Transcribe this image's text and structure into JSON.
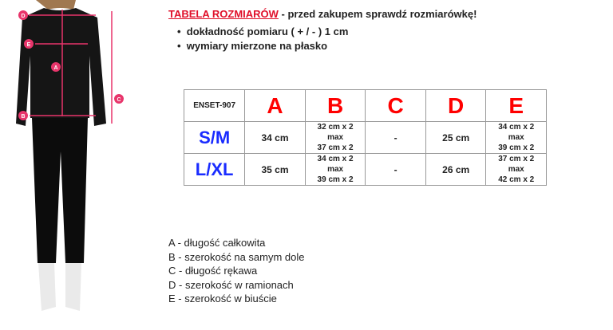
{
  "header": {
    "title_red": "TABELA ROZMIARÓW",
    "title_rest": " - przed zakupem sprawdź rozmiarówkę!",
    "bullets": [
      "dokładność pomiaru ( + / - ) 1 cm",
      "wymiary mierzone na płasko"
    ]
  },
  "table": {
    "code": "ENSET-907",
    "columns": [
      "A",
      "B",
      "C",
      "D",
      "E"
    ],
    "rows": [
      {
        "size": "S/M",
        "A": "34 cm",
        "B": [
          "32 cm x 2",
          "max",
          "37 cm x 2"
        ],
        "C": "-",
        "D": "25 cm",
        "E": [
          "34 cm x 2",
          "max",
          "39 cm x 2"
        ]
      },
      {
        "size": "L/XL",
        "A": "35 cm",
        "B": [
          "34 cm x 2",
          "max",
          "39 cm x 2"
        ],
        "C": "-",
        "D": "26 cm",
        "E": [
          "37 cm x 2",
          "max",
          "42 cm x 2"
        ]
      }
    ]
  },
  "legend": [
    {
      "k": "A",
      "t": " - długość całkowita"
    },
    {
      "k": "B",
      "t": " - szerokość na samym dole"
    },
    {
      "k": "C",
      "t": " - długość rękawa"
    },
    {
      "k": "D",
      "t": " - szerokość w ramionach"
    },
    {
      "k": "E",
      "t": " - szerokość w biuście"
    }
  ],
  "photo": {
    "markers": [
      "D",
      "E",
      "A",
      "B",
      "C"
    ]
  },
  "colors": {
    "title": "#e0102a",
    "letters": "#ff0000",
    "sizes": "#1a2cff",
    "markers": "#e8356b"
  }
}
